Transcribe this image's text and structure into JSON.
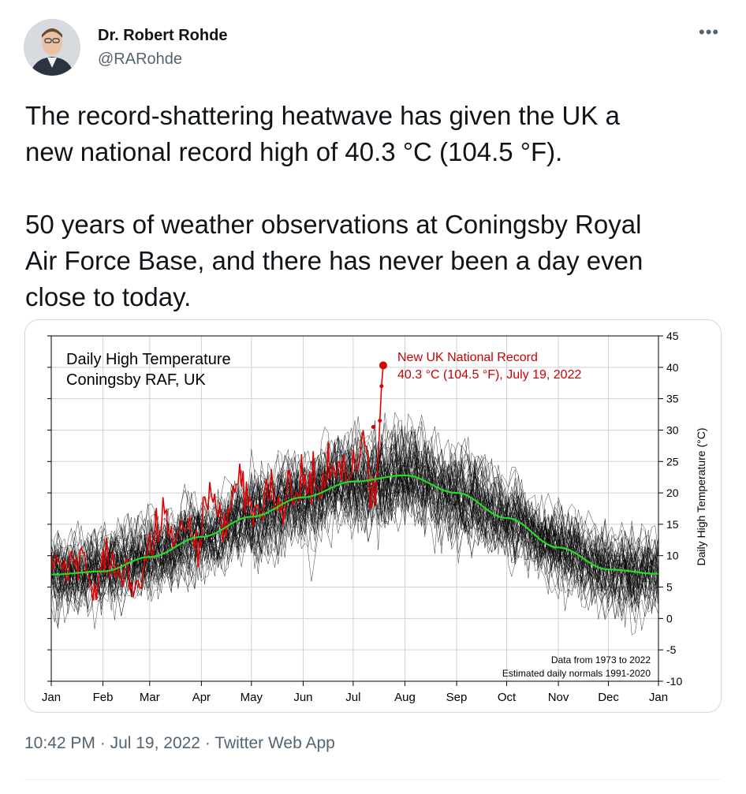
{
  "author": {
    "name": "Dr. Robert Rohde",
    "handle": "@RARohde"
  },
  "more_icon": "more-options-icon",
  "tweet": {
    "text": "The record-shattering heatwave has given the UK a\nnew national record high of 40.3 °C (104.5 °F).\n\n50 years of weather observations at Coningsby Royal\nAir Force Base, and there has never been a day even\nclose to today."
  },
  "meta": {
    "time": "10:42 PM",
    "sep1": " · ",
    "date": "Jul 19, 2022",
    "sep2": " · ",
    "source": "Twitter Web App"
  },
  "colors": {
    "history": "#000000",
    "current_year": "#e00000",
    "normal": "#22dd22",
    "annotation": "#cc0000"
  },
  "chart_data": {
    "type": "line",
    "title": "Daily High Temperature",
    "subtitle": "Coningsby RAF, UK",
    "ylabel": "Daily High Temperature (°C)",
    "xlabel": "",
    "ylim": [
      -10,
      45
    ],
    "y_ticks": [
      "45",
      "40",
      "35",
      "30",
      "25",
      "20",
      "15",
      "10",
      "5",
      "0",
      "-5",
      "-10"
    ],
    "x_ticks": [
      "Jan",
      "Feb",
      "Mar",
      "Apr",
      "May",
      "Jun",
      "Jul",
      "Aug",
      "Sep",
      "Oct",
      "Nov",
      "Dec",
      "Jan"
    ],
    "grid": true,
    "record_label_1": "New UK National Record",
    "record_label_2": "40.3 °C (104.5 °F), July 19, 2022",
    "note_1": "Data from 1973 to 2022",
    "note_2": "Estimated daily normals 1991-2020",
    "normal_series": {
      "name": "Estimated daily normals 1991-2020",
      "day_of_year": [
        1,
        32,
        60,
        91,
        121,
        152,
        182,
        213,
        244,
        274,
        305,
        335,
        365
      ],
      "values": [
        7.0,
        7.5,
        9.8,
        13.0,
        16.2,
        19.3,
        21.8,
        22.8,
        20.0,
        16.0,
        11.3,
        7.8,
        7.1
      ]
    },
    "record": {
      "day_of_year": 200,
      "value": 40.3
    },
    "history_years": "1973–2021",
    "current_year": 2022
  }
}
